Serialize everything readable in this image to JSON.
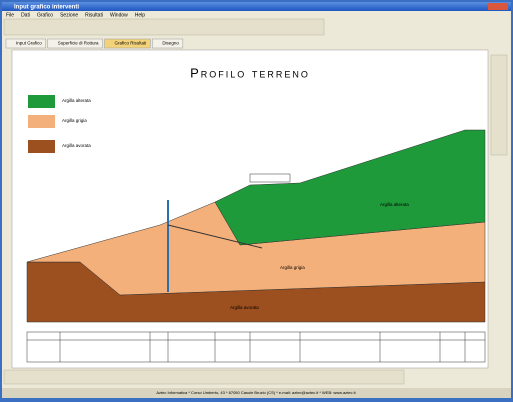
{
  "window": {
    "title": "Input grafico interventi",
    "menu": [
      "File",
      "Dati",
      "Grafico",
      "Sezione",
      "Risultati",
      "Window",
      "Help"
    ],
    "tabs": [
      "Input Grafico",
      "Superficie di Rottura",
      "Grafico Risultati",
      "Disegno"
    ],
    "status": "Aztec Informatica * Corso Umberto, 43 * 87050 Casole Bruzio (CS) * e-mail: aztec@aztec.it * WEB: www.aztec.it"
  },
  "drawing": {
    "title": "Profilo terreno",
    "legend": [
      "Argilla alterata",
      "Argilla grigia",
      "Argilla avorata"
    ],
    "layer_labels": [
      "Argilla alterata",
      "Argilla grigia",
      "Argilla avorata"
    ]
  }
}
